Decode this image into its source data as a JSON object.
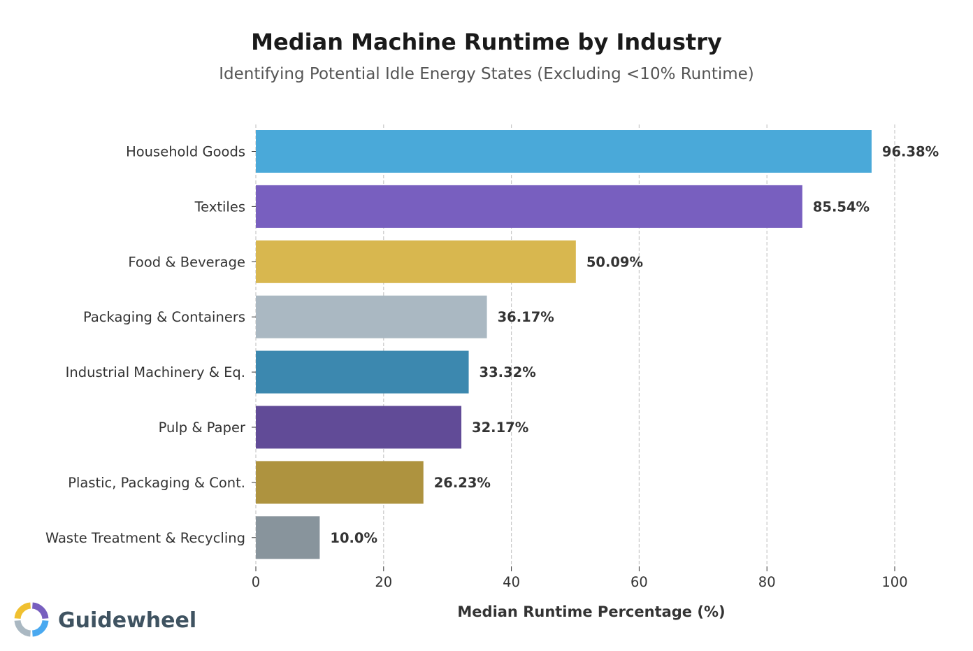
{
  "chart_data": {
    "type": "bar",
    "orientation": "horizontal",
    "title": "Median Machine Runtime by Industry",
    "subtitle": "Identifying Potential Idle Energy States (Excluding <10% Runtime)",
    "xlabel": "Median Runtime Percentage (%)",
    "ylabel": "",
    "xlim": [
      0,
      100
    ],
    "xticks": [
      0,
      20,
      40,
      60,
      80,
      100
    ],
    "grid": "vertical-dashed",
    "categories": [
      "Household Goods",
      "Textiles",
      "Food & Beverage",
      "Packaging & Containers",
      "Industrial Machinery & Eq.",
      "Pulp & Paper",
      "Plastic, Packaging & Cont.",
      "Waste Treatment & Recycling"
    ],
    "values": [
      96.38,
      85.54,
      50.09,
      36.17,
      33.32,
      32.17,
      26.23,
      10.0
    ],
    "value_labels": [
      "96.38%",
      "85.54%",
      "50.09%",
      "36.17%",
      "33.32%",
      "32.17%",
      "26.23%",
      "10.0%"
    ],
    "colors": [
      "#4aa9d9",
      "#785fbf",
      "#d8b74f",
      "#aab8c2",
      "#3c88af",
      "#614b97",
      "#ae933f",
      "#88949c"
    ]
  },
  "brand": {
    "name": "Guidewheel",
    "logo_colors": [
      "#785fbf",
      "#4aa9f0",
      "#aab8c2",
      "#f0c030"
    ]
  }
}
